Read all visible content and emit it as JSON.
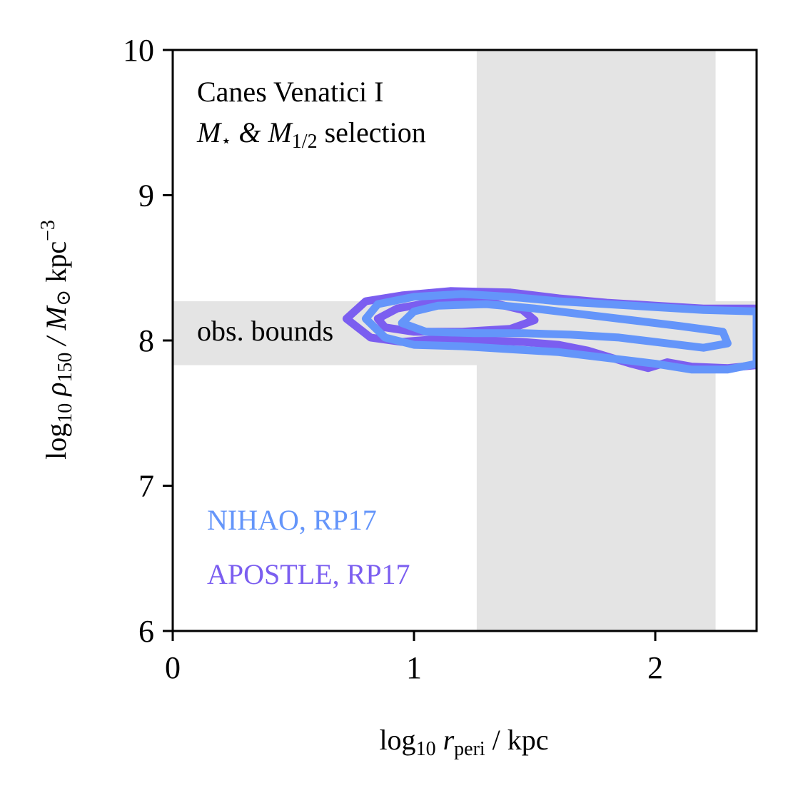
{
  "chart_data": {
    "type": "contour",
    "annotation": {
      "line1": "Canes Venatici I",
      "line2_parts": [
        "M",
        "⋆",
        " & M",
        "1/2",
        " selection"
      ]
    },
    "xlabel_parts": [
      "log",
      "10",
      " r",
      "peri",
      " / kpc"
    ],
    "ylabel_parts": [
      "log",
      "10",
      " ρ",
      "150",
      " / M",
      "⊙",
      " kpc",
      "−3"
    ],
    "xlim": [
      0,
      2.42
    ],
    "ylim": [
      6,
      10
    ],
    "xticks": [
      0,
      1,
      2
    ],
    "xtick_labels": [
      "0",
      "1",
      "2"
    ],
    "yticks": [
      6,
      7,
      8,
      9,
      10
    ],
    "ytick_labels": [
      "6",
      "7",
      "8",
      "9",
      "10"
    ],
    "obs_bounds": {
      "label": "obs. bounds",
      "x_range": [
        1.26,
        2.25
      ],
      "y_range": [
        7.83,
        8.27
      ],
      "color": "#e4e4e4"
    },
    "series": [
      {
        "name": "APOSTLE, RP17",
        "color": "#7b5ef0",
        "contours": [
          [
            [
              0.72,
              8.15
            ],
            [
              0.8,
              8.27
            ],
            [
              0.95,
              8.31
            ],
            [
              1.15,
              8.34
            ],
            [
              1.4,
              8.33
            ],
            [
              1.6,
              8.29
            ],
            [
              1.8,
              8.26
            ],
            [
              2.0,
              8.24
            ],
            [
              2.2,
              8.22
            ],
            [
              2.42,
              8.22
            ],
            [
              2.42,
              7.83
            ],
            [
              2.3,
              7.81
            ],
            [
              2.15,
              7.82
            ],
            [
              2.05,
              7.85
            ],
            [
              1.97,
              7.81
            ],
            [
              1.9,
              7.84
            ],
            [
              1.82,
              7.88
            ],
            [
              1.72,
              7.93
            ],
            [
              1.6,
              7.97
            ],
            [
              1.45,
              7.99
            ],
            [
              1.3,
              8.0
            ],
            [
              1.1,
              8.01
            ],
            [
              0.95,
              7.99
            ],
            [
              0.82,
              8.02
            ],
            [
              0.72,
              8.15
            ]
          ],
          [
            [
              0.85,
              8.15
            ],
            [
              0.93,
              8.22
            ],
            [
              1.1,
              8.27
            ],
            [
              1.3,
              8.27
            ],
            [
              1.45,
              8.21
            ],
            [
              1.5,
              8.14
            ],
            [
              1.4,
              8.08
            ],
            [
              1.2,
              8.06
            ],
            [
              1.0,
              8.06
            ],
            [
              0.88,
              8.09
            ],
            [
              0.85,
              8.15
            ]
          ]
        ]
      },
      {
        "name": "NIHAO, RP17",
        "color": "#6495fa",
        "contours": [
          [
            [
              0.8,
              8.15
            ],
            [
              0.85,
              8.25
            ],
            [
              1.0,
              8.3
            ],
            [
              1.2,
              8.32
            ],
            [
              1.4,
              8.3
            ],
            [
              1.6,
              8.27
            ],
            [
              1.8,
              8.25
            ],
            [
              2.0,
              8.23
            ],
            [
              2.2,
              8.21
            ],
            [
              2.42,
              8.2
            ],
            [
              2.42,
              7.84
            ],
            [
              2.3,
              7.8
            ],
            [
              2.15,
              7.8
            ],
            [
              2.0,
              7.84
            ],
            [
              1.8,
              7.88
            ],
            [
              1.6,
              7.92
            ],
            [
              1.4,
              7.94
            ],
            [
              1.2,
              7.96
            ],
            [
              1.0,
              7.97
            ],
            [
              0.88,
              8.02
            ],
            [
              0.8,
              8.15
            ]
          ],
          [
            [
              0.95,
              8.12
            ],
            [
              1.0,
              8.2
            ],
            [
              1.1,
              8.24
            ],
            [
              1.3,
              8.25
            ],
            [
              1.5,
              8.22
            ],
            [
              1.7,
              8.18
            ],
            [
              1.9,
              8.14
            ],
            [
              2.1,
              8.1
            ],
            [
              2.28,
              8.06
            ],
            [
              2.3,
              7.98
            ],
            [
              2.2,
              7.95
            ],
            [
              2.05,
              7.98
            ],
            [
              1.85,
              8.02
            ],
            [
              1.65,
              8.04
            ],
            [
              1.45,
              8.05
            ],
            [
              1.25,
              8.05
            ],
            [
              1.05,
              8.06
            ],
            [
              0.95,
              8.12
            ]
          ]
        ]
      }
    ],
    "legend_placement": "lower-left",
    "grid": false
  }
}
